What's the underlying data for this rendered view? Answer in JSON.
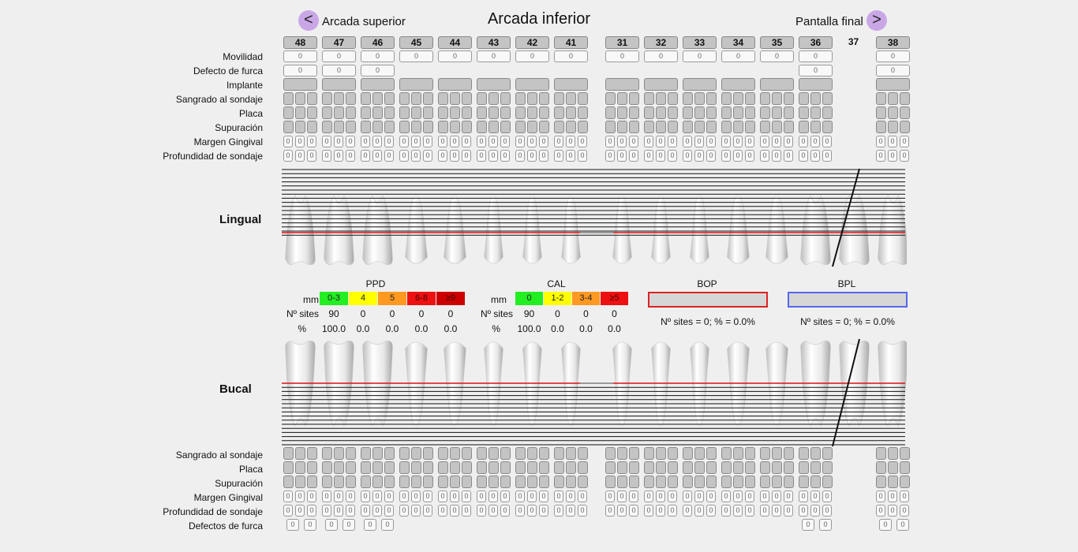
{
  "nav": {
    "prev_label": "Arcada superior",
    "prev_symbol": "<",
    "title": "Arcada inferior",
    "next_label": "Pantalla final",
    "next_symbol": ">"
  },
  "teeth": [
    "48",
    "47",
    "46",
    "45",
    "44",
    "43",
    "42",
    "41",
    "31",
    "32",
    "33",
    "34",
    "35",
    "36",
    "37",
    "38"
  ],
  "row_labels_top": [
    "Movilidad",
    "Defecto de furca",
    "Implante",
    "Sangrado al sondaje",
    "Placa",
    "Supuración",
    "Margen Gingival",
    "Profundidad de sondaje"
  ],
  "row_labels_bottom": [
    "Sangrado al sondaje",
    "Placa",
    "Supuración",
    "Margen Gingival",
    "Profundidad de sondaje",
    "Defectos de furca"
  ],
  "default_value": "0",
  "chart_labels": {
    "lingual": "Lingual",
    "bucal": "Bucal"
  },
  "ppd": {
    "title": "PPD",
    "unit": "mm",
    "row_sites": "Nº sites",
    "row_pct": "%",
    "categories": [
      "0-3",
      "4",
      "5",
      "6-8",
      "≥9"
    ],
    "colors": [
      "#22ee22",
      "#ffff00",
      "#ff9922",
      "#ee1111",
      "#cc0000"
    ],
    "sites": [
      "90",
      "0",
      "0",
      "0",
      "0"
    ],
    "pct": [
      "100.0",
      "0.0",
      "0.0",
      "0.0",
      "0.0"
    ]
  },
  "cal": {
    "title": "CAL",
    "unit": "mm",
    "row_sites": "Nº sites",
    "row_pct": "%",
    "categories": [
      "0",
      "1-2",
      "3-4",
      "≥5"
    ],
    "colors": [
      "#22ee22",
      "#ffff00",
      "#ff9922",
      "#ee1111"
    ],
    "sites": [
      "90",
      "0",
      "0",
      "0"
    ],
    "pct": [
      "100.0",
      "0.0",
      "0.0",
      "0.0"
    ]
  },
  "bop": {
    "title": "BOP",
    "summary": "Nº sites = 0; % = 0.0%",
    "color": "#dd2222"
  },
  "bpl": {
    "title": "BPL",
    "summary": "Nº sites = 0; % = 0.0%",
    "color": "#5566ee"
  },
  "missing_tooth": "37"
}
